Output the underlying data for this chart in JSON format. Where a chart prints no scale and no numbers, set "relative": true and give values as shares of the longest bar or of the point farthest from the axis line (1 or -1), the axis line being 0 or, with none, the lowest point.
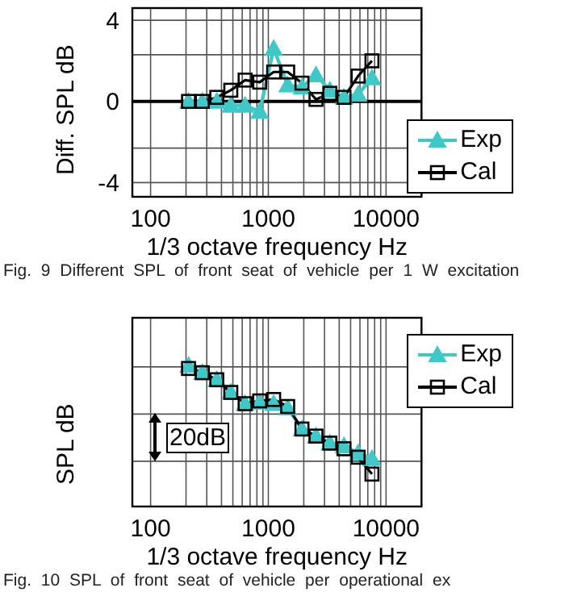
{
  "chart_data": [
    {
      "type": "line",
      "ylabel": "Diff. SPL  dB",
      "xlabel": "1/3 octave frequency  Hz",
      "log": "x",
      "x": [
        210,
        275,
        365,
        480,
        635,
        845,
        1110,
        1460,
        1930,
        2540,
        3330,
        4390,
        5790,
        7590
      ],
      "xlim": [
        70,
        20000
      ],
      "xticks": [
        100,
        {
          "value": 200,
          "label": null
        },
        {
          "value": 300,
          "label": null
        },
        {
          "value": 400,
          "label": null
        },
        {
          "value": 500,
          "label": null
        },
        {
          "value": 600,
          "label": null
        },
        {
          "value": 700,
          "label": null
        },
        {
          "value": 800,
          "label": null
        },
        {
          "value": 900,
          "label": null
        },
        1000,
        {
          "value": 2000,
          "label": null
        },
        {
          "value": 3000,
          "label": null
        },
        {
          "value": 4000,
          "label": null
        },
        {
          "value": 5000,
          "label": null
        },
        {
          "value": 6000,
          "label": null
        },
        {
          "value": 7000,
          "label": null
        },
        {
          "value": 8000,
          "label": null
        },
        {
          "value": 9000,
          "label": null
        },
        10000
      ],
      "ylim": [
        -4.7,
        4.6
      ],
      "yticks": [
        -4,
        {
          "value": -2.3,
          "label": null
        },
        0,
        {
          "value": 2.3,
          "label": null
        },
        4
      ],
      "grid": true,
      "legend": "bottom right",
      "ref_lines": [
        {
          "axis": "y",
          "value": 0,
          "color": "#000000"
        }
      ],
      "series": [
        {
          "name": "Exp",
          "color": "#40c8c8",
          "marker": "triangle",
          "values": [
            0,
            0,
            0,
            -0.2,
            -0.2,
            -0.5,
            2.6,
            0.8,
            0.7,
            1.3,
            0.55,
            0.2,
            0.35,
            1.15
          ]
        },
        {
          "name": "Cal",
          "color": "#000000",
          "marker": "square",
          "values": [
            0,
            0,
            0.2,
            0.55,
            1.05,
            0.95,
            1.45,
            1.45,
            0.9,
            0.1,
            0.4,
            0.2,
            1.25,
            2.0
          ]
        }
      ],
      "annotations": [
        "Fig. 9   Different SPL of front seat of vehicle per 1 W excitation"
      ]
    },
    {
      "type": "line",
      "ylabel": "SPL  dB",
      "xlabel": "1/3 octave frequency  Hz",
      "log": "x",
      "relative": true,
      "tick_labels": "x",
      "x": [
        210,
        275,
        365,
        480,
        635,
        845,
        1110,
        1460,
        1930,
        2540,
        3330,
        4390,
        5790,
        7590
      ],
      "xlim": [
        70,
        20000
      ],
      "xticks": [
        100,
        {
          "value": 200,
          "label": null
        },
        {
          "value": 300,
          "label": null
        },
        {
          "value": 400,
          "label": null
        },
        {
          "value": 500,
          "label": null
        },
        {
          "value": 600,
          "label": null
        },
        {
          "value": 700,
          "label": null
        },
        {
          "value": 800,
          "label": null
        },
        {
          "value": 900,
          "label": null
        },
        1000,
        {
          "value": 2000,
          "label": null
        },
        {
          "value": 3000,
          "label": null
        },
        {
          "value": 4000,
          "label": null
        },
        {
          "value": 5000,
          "label": null
        },
        {
          "value": 6000,
          "label": null
        },
        {
          "value": 7000,
          "label": null
        },
        {
          "value": 8000,
          "label": null
        },
        {
          "value": 9000,
          "label": null
        },
        10000
      ],
      "grid": true,
      "legend": "top right",
      "series": [
        {
          "name": "Exp",
          "color": "#40c8c8",
          "marker": "triangle",
          "values": [
            1,
            0.95,
            0.9,
            0.81,
            0.73,
            0.74,
            0.73,
            0.7,
            0.55,
            0.5,
            0.45,
            0.43,
            0.38,
            0.34
          ]
        },
        {
          "name": "Cal",
          "color": "#000000",
          "marker": "square",
          "values": [
            0.98,
            0.95,
            0.9,
            0.81,
            0.73,
            0.75,
            0.76,
            0.71,
            0.55,
            0.5,
            0.45,
            0.41,
            0.35,
            0.23
          ]
        }
      ],
      "annotations": [
        "20dB",
        "Fig. 10   SPL of front seat of vehicle per operational ex"
      ]
    }
  ]
}
